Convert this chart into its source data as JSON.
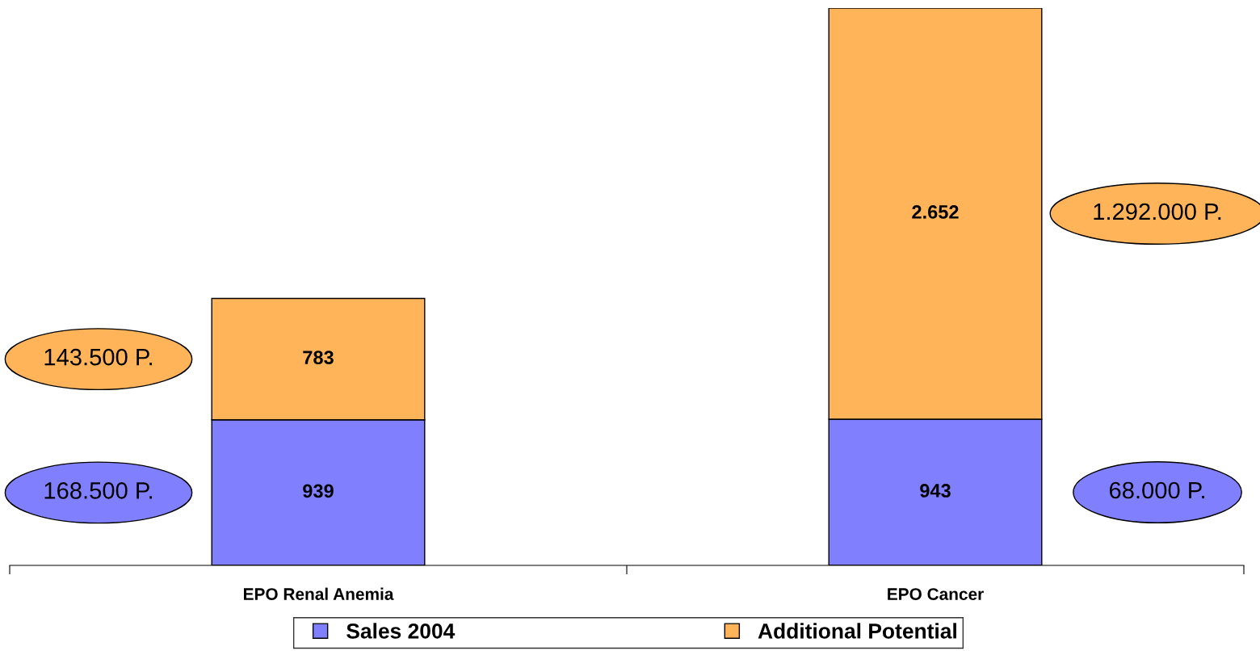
{
  "chart_data": {
    "type": "bar",
    "stacked": true,
    "categories": [
      "EPO Renal Anemia",
      "EPO Cancer"
    ],
    "series": [
      {
        "name": "Sales 2004",
        "color": "#8080ff",
        "values": [
          939,
          943
        ],
        "value_labels": [
          "939",
          "943"
        ]
      },
      {
        "name": "Additional Potential",
        "color": "#ffb45a",
        "values": [
          783,
          2652
        ],
        "value_labels": [
          "783",
          "2.652"
        ]
      }
    ],
    "annotations": [
      "168.500 P.",
      "143.500 P.",
      "68.000 P.",
      "1.292.000 P."
    ],
    "legend": "bottom",
    "grid": false
  }
}
